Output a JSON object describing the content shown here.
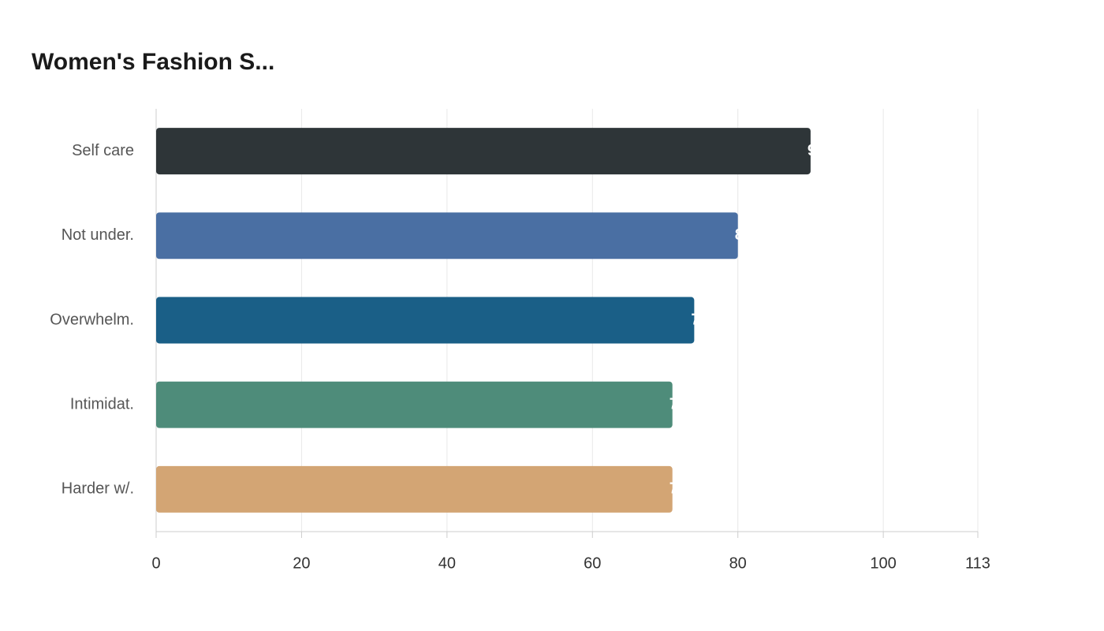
{
  "chart_data": {
    "type": "bar",
    "orientation": "horizontal",
    "title": "Women's Fashion S...",
    "categories": [
      "Self care",
      "Not under.",
      "Overwhelm.",
      "Intimidat.",
      "Harder w/."
    ],
    "values": [
      90,
      80,
      74,
      71,
      71
    ],
    "colors": [
      "#2e3538",
      "#4a6fa3",
      "#1a5f87",
      "#4e8c7a",
      "#d3a574"
    ],
    "xlim": [
      0,
      113
    ],
    "xticks": [
      0,
      20,
      40,
      60,
      80,
      100,
      113
    ],
    "grid": true
  }
}
